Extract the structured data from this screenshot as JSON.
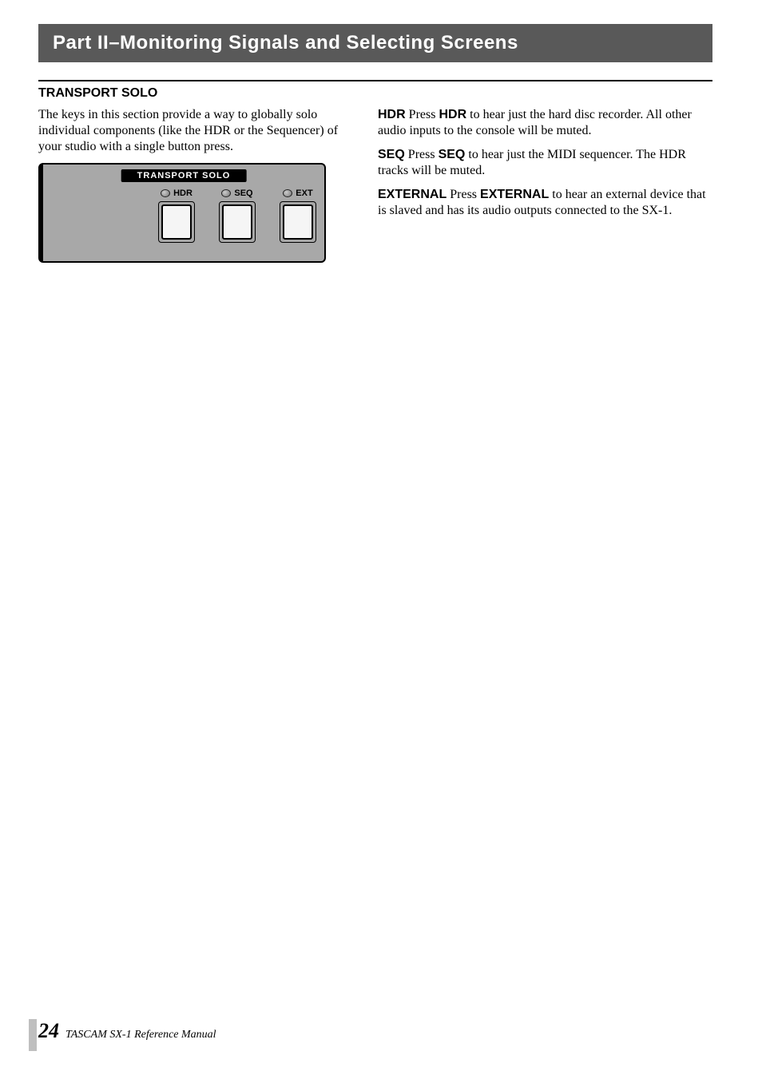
{
  "header": {
    "title": "Part II–Monitoring Signals and Selecting Screens"
  },
  "section": {
    "title": "TRANSPORT SOLO",
    "intro": "The keys in this section provide a way to globally solo individual components (like the HDR or the Sequencer) of your studio with a single button press."
  },
  "panel": {
    "title": "TRANSPORT SOLO",
    "buttons": [
      {
        "label": "HDR"
      },
      {
        "label": "SEQ"
      },
      {
        "label": "EXT"
      }
    ]
  },
  "entries": {
    "hdr": {
      "head": "HDR",
      "key": "HDR",
      "pre": " Press ",
      "post": " to hear just the hard disc recorder. All other audio inputs to the console will be muted."
    },
    "seq": {
      "head": "SEQ",
      "key": "SEQ",
      "pre": " Press ",
      "post": " to hear just the MIDI sequencer. The HDR tracks will be muted."
    },
    "ext": {
      "head": "EXTERNAL",
      "key": "EXTERNAL",
      "pre": " Press ",
      "post": " to hear an external device that is slaved and has its audio outputs connected to the SX-1."
    }
  },
  "footer": {
    "page": "24",
    "text": " TASCAM SX-1 Reference Manual"
  }
}
